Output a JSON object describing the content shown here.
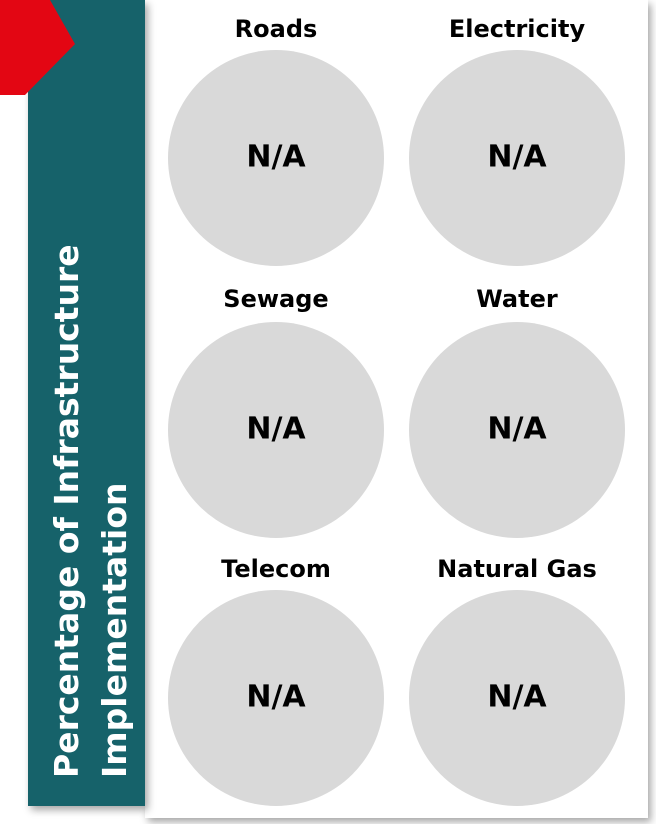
{
  "sidebar": {
    "title_lines": [
      "Percentage of Infrastructure",
      "Implementation"
    ]
  },
  "panels": [
    {
      "label": "Roads",
      "value": "N/A"
    },
    {
      "label": "Electricity",
      "value": "N/A"
    },
    {
      "label": "Sewage",
      "value": "N/A"
    },
    {
      "label": "Water",
      "value": "N/A"
    },
    {
      "label": "Telecom",
      "value": "N/A"
    },
    {
      "label": "Natural Gas",
      "value": "N/A"
    }
  ]
}
